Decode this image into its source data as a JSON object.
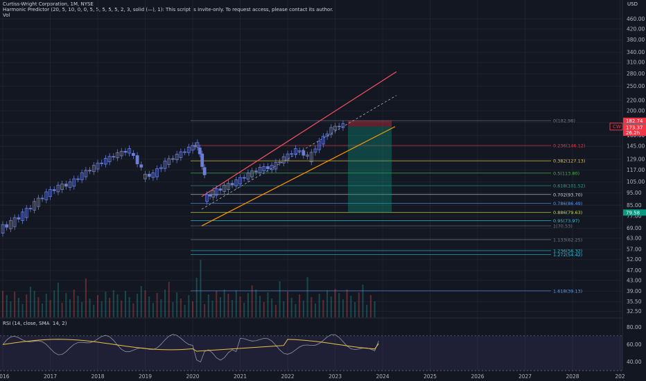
{
  "header": {
    "symbol_line": "Curtiss-Wright Corporation, 1M, NYSE",
    "indicator_line": "Harmonic Predictor (20, 5, 10, 0, 0, 5, 5, 5, 5, 5, 2, 3, solid (—), 1): This script is invite-only. To request access, please contact its author.",
    "volume_label": "Vol",
    "currency": "USD"
  },
  "rsi": {
    "legend": "RSI (14, close, SMA, 14, 2)",
    "ticks": [
      "80.00",
      "60.00",
      "40.00"
    ],
    "band_top": 70,
    "band_bottom": 30,
    "last_rsi": 64,
    "last_sma": 61
  },
  "chart_data": {
    "type": "candlestick",
    "price_scale": "log",
    "x_ticks": [
      "2016",
      "2017",
      "2018",
      "2019",
      "2020",
      "2021",
      "2022",
      "2023",
      "2024",
      "2025",
      "2026",
      "2027",
      "2028",
      "202"
    ],
    "y_ticks": [
      "460.00",
      "420.00",
      "380.00",
      "340.00",
      "310.00",
      "280.00",
      "250.00",
      "220.00",
      "200.00",
      "180.00",
      "160.00",
      "145.00",
      "129.00",
      "117.00",
      "105.00",
      "95.00",
      "85.00",
      "77.00",
      "69.00",
      "63.00",
      "57.00",
      "52.00",
      "47.00",
      "43.00",
      "39.00",
      "35.50",
      "32.50"
    ],
    "ylim": [
      31,
      500
    ],
    "fib_levels": [
      {
        "label": "0(182.98)",
        "value": 182.98,
        "color": "#787b86"
      },
      {
        "label": "0.236(146.12)",
        "value": 146.12,
        "color": "#f23645"
      },
      {
        "label": "0.382(127.13)",
        "value": 127.13,
        "color": "#e8c547"
      },
      {
        "label": "0.5(113.80)",
        "value": 113.8,
        "color": "#4caf50"
      },
      {
        "label": "0.618(101.52)",
        "value": 101.52,
        "color": "#26a69a"
      },
      {
        "label": "0.702(93.70)",
        "value": 93.7,
        "color": "#d1d4dc"
      },
      {
        "label": "0.786(86.49)",
        "value": 86.49,
        "color": "#5b9cf6"
      },
      {
        "label": "0.886(79.63)",
        "value": 79.63,
        "color": "#cddc39"
      },
      {
        "label": "0.95(73.97)",
        "value": 73.97,
        "color": "#26c6da"
      },
      {
        "label": "1(70.53)",
        "value": 70.53,
        "color": "#787b86"
      },
      {
        "label": "1.133(62.25)",
        "value": 62.25,
        "color": "#787b86"
      },
      {
        "label": "1.236(56.32)",
        "value": 56.32,
        "color": "#26c6da"
      },
      {
        "label": "1.272(54.42)",
        "value": 54.42,
        "color": "#26c6da"
      },
      {
        "label": "1.618(39.13)",
        "value": 39.13,
        "color": "#5b9cf6"
      }
    ],
    "price_badges": [
      {
        "label": "182.74",
        "value": 182.74,
        "color": "#f23645"
      },
      {
        "label": "173.67",
        "value": 173.67,
        "color": "#6a6d78"
      },
      {
        "label": "173.37",
        "value": 172.0,
        "color": "#f23645"
      },
      {
        "label": "26.2h",
        "value": 164.0,
        "color": "#f23645"
      },
      {
        "label": "79.58",
        "value": 79.58,
        "color": "#089981"
      }
    ],
    "symbol_badge": "CW",
    "series": [
      {
        "name": "price",
        "values": [
          [
            2016.0,
            68,
            72
          ],
          [
            2016.25,
            72,
            78
          ],
          [
            2016.5,
            78,
            86
          ],
          [
            2016.75,
            86,
            94
          ],
          [
            2017.0,
            94,
            100
          ],
          [
            2017.25,
            100,
            103
          ],
          [
            2017.5,
            103,
            112
          ],
          [
            2017.75,
            112,
            120
          ],
          [
            2018.0,
            120,
            128
          ],
          [
            2018.25,
            128,
            135
          ],
          [
            2018.5,
            135,
            140
          ],
          [
            2018.75,
            138,
            118
          ],
          [
            2019.0,
            110,
            112
          ],
          [
            2019.25,
            112,
            125
          ],
          [
            2019.5,
            125,
            133
          ],
          [
            2019.75,
            133,
            142
          ],
          [
            2020.0,
            142,
            148
          ],
          [
            2020.15,
            145,
            110
          ],
          [
            2020.3,
            90,
            95
          ],
          [
            2020.5,
            95,
            100
          ],
          [
            2020.75,
            100,
            105
          ],
          [
            2021.0,
            105,
            112
          ],
          [
            2021.25,
            112,
            118
          ],
          [
            2021.5,
            118,
            120
          ],
          [
            2021.75,
            120,
            130
          ],
          [
            2022.0,
            130,
            140
          ],
          [
            2022.25,
            140,
            132
          ],
          [
            2022.5,
            128,
            150
          ],
          [
            2022.75,
            150,
            170
          ],
          [
            2023.0,
            170,
            176
          ]
        ]
      }
    ]
  }
}
